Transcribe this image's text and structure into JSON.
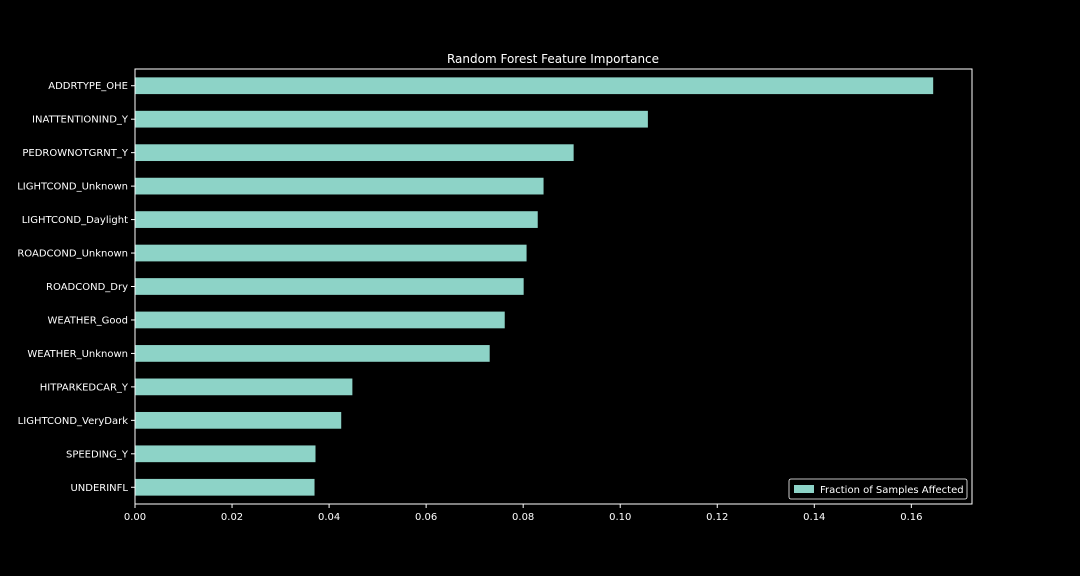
{
  "chart_data": {
    "type": "bar",
    "orientation": "horizontal",
    "title": "Random Forest Feature Importance",
    "xlabel": "",
    "ylabel": "",
    "categories": [
      "ADDRTYPE_OHE",
      "INATTENTIONIND_Y",
      "PEDROWNOTGRNT_Y",
      "LIGHTCOND_Unknown",
      "LIGHTCOND_Daylight",
      "ROADCOND_Unknown",
      "ROADCOND_Dry",
      "WEATHER_Good",
      "WEATHER_Unknown",
      "HITPARKEDCAR_Y",
      "LIGHTCOND_VeryDark",
      "SPEEDING_Y",
      "UNDERINFL"
    ],
    "series": [
      {
        "name": "Fraction of Samples Affected",
        "values": [
          0.1645,
          0.1057,
          0.0904,
          0.0842,
          0.083,
          0.0807,
          0.0801,
          0.0762,
          0.0731,
          0.0448,
          0.0425,
          0.0372,
          0.037
        ]
      }
    ],
    "xlim": [
      0,
      0.1725
    ],
    "xticks": [
      0.0,
      0.02,
      0.04,
      0.06,
      0.08,
      0.1,
      0.12,
      0.14,
      0.16
    ],
    "xtick_labels": [
      "0.00",
      "0.02",
      "0.04",
      "0.06",
      "0.08",
      "0.10",
      "0.12",
      "0.14",
      "0.16"
    ],
    "grid": false,
    "legend_position": "bottom-right",
    "colors": {
      "background": "#000000",
      "bar": "#8dd3c7",
      "axes": "#ffffff",
      "text": "#ffffff"
    }
  }
}
